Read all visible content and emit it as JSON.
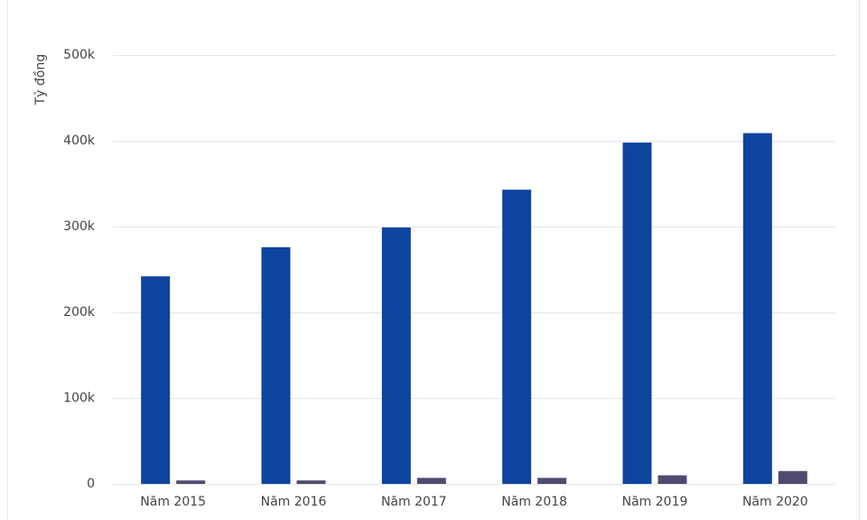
{
  "chart_data": {
    "type": "bar",
    "y_label": "Tỷ đồng",
    "categories": [
      "Năm 2015",
      "Năm 2016",
      "Năm 2017",
      "Năm 2018",
      "Năm 2019",
      "Năm 2020"
    ],
    "series": [
      {
        "color": "#0d44a0",
        "values": [
          242000,
          276000,
          299000,
          343000,
          398000,
          409000
        ]
      },
      {
        "color": "#4f4b70",
        "values": [
          4000,
          4000,
          7000,
          7000,
          10000,
          15000
        ]
      }
    ],
    "ylim": [
      0,
      500000
    ],
    "yticks": [
      0,
      {
        "value": 100000,
        "label": "100k"
      },
      {
        "value": 200000,
        "label": "200k"
      },
      {
        "value": 300000,
        "label": "300k"
      },
      {
        "value": 400000,
        "label": "400k"
      },
      {
        "value": 500000,
        "label": "500k"
      }
    ],
    "grid": true
  }
}
